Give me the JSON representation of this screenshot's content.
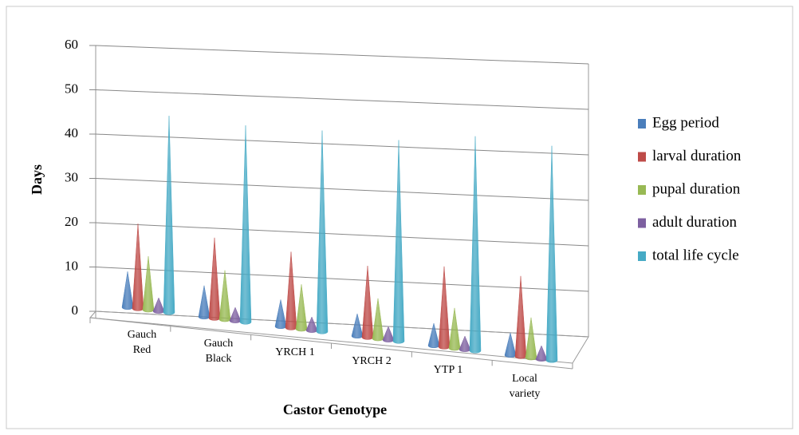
{
  "chart_data": {
    "type": "cone3d",
    "x_label": "Castor Genotype",
    "y_label": "Days",
    "categories": [
      "Gauch Red",
      "Gauch Black",
      "YRCH 1",
      "YRCH 2",
      "YTP 1",
      "Local variety"
    ],
    "series": [
      {
        "name": "Egg period",
        "color": "#4a7ebb",
        "values": [
          8,
          7,
          6,
          5,
          5,
          5
        ]
      },
      {
        "name": "larval duration",
        "color": "#be4b48",
        "values": [
          19,
          18,
          17,
          16,
          18,
          18
        ]
      },
      {
        "name": "pupal duration",
        "color": "#98b954",
        "values": [
          12,
          11,
          10,
          9,
          9,
          9
        ]
      },
      {
        "name": "adult duration",
        "color": "#7d60a0",
        "values": [
          3,
          3,
          3,
          3,
          3,
          3
        ]
      },
      {
        "name": "total life cycle",
        "color": "#46aac5",
        "values": [
          44,
          44,
          45,
          45,
          48,
          48
        ]
      }
    ],
    "ylim": [
      0,
      60
    ],
    "yticks": [
      0,
      10,
      20,
      30,
      40,
      50,
      60
    ],
    "grid": true,
    "legend": "right"
  }
}
